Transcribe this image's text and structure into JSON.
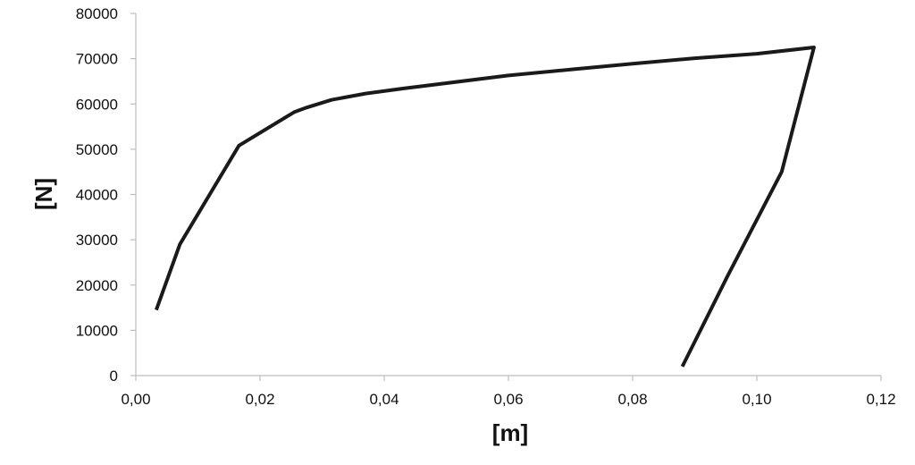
{
  "chart_data": {
    "type": "line",
    "title": "",
    "xlabel": "[m]",
    "ylabel": "[N]",
    "xlim": [
      0,
      0.12
    ],
    "ylim": [
      0,
      80000
    ],
    "x_ticks": [
      0,
      0.02,
      0.04,
      0.06,
      0.08,
      0.1,
      0.12
    ],
    "x_tick_labels": [
      "0,00",
      "0,02",
      "0,04",
      "0,06",
      "0,08",
      "0,10",
      "0,12"
    ],
    "y_ticks": [
      0,
      10000,
      20000,
      30000,
      40000,
      50000,
      60000,
      70000,
      80000
    ],
    "y_tick_labels": [
      "0",
      "10000",
      "20000",
      "30000",
      "40000",
      "50000",
      "60000",
      "70000",
      "80000"
    ],
    "grid": false,
    "legend": "none",
    "line_color": "#1a1a1a",
    "axis_color": "#bdbdbd",
    "series": [
      {
        "x": [
          0.0033,
          0.0071,
          0.0166,
          0.0255,
          0.0275,
          0.0315,
          0.037,
          0.043,
          0.05,
          0.06,
          0.07,
          0.08,
          0.09,
          0.1,
          0.1092,
          0.104,
          0.0953,
          0.088
        ],
        "y": [
          14500,
          29000,
          50800,
          58200,
          59200,
          60900,
          62300,
          63400,
          64600,
          66300,
          67600,
          68900,
          70100,
          71100,
          72500,
          45000,
          22000,
          2000
        ]
      }
    ]
  }
}
